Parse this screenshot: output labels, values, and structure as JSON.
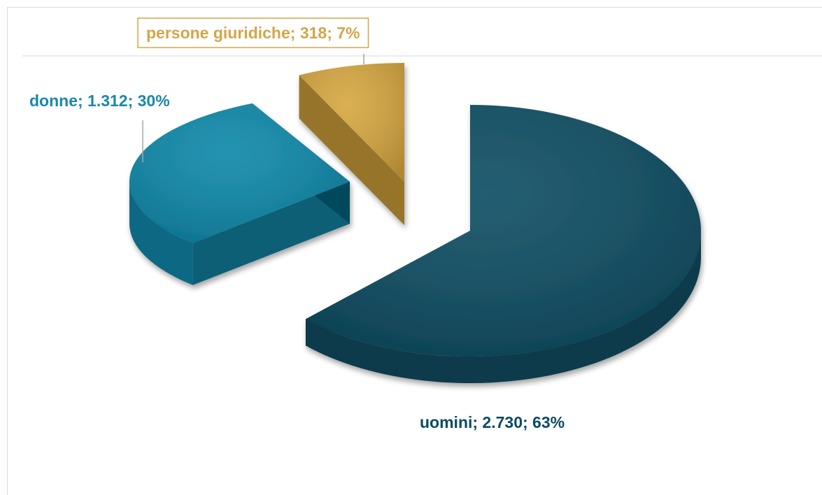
{
  "chart_data": {
    "type": "pie",
    "title": "",
    "three_d": true,
    "exploded": true,
    "legend": "none",
    "slices": [
      {
        "label": "uomini",
        "value": 2730,
        "value_text": "2.730",
        "percent_text": "63%",
        "color": "#0b4b61"
      },
      {
        "label": "donne",
        "value": 1312,
        "value_text": "1.312",
        "percent_text": "30%",
        "color": "#0b87a8"
      },
      {
        "label": "persone giuridiche",
        "value": 318,
        "value_text": "318",
        "percent_text": "7%",
        "color": "#d6a63f"
      }
    ],
    "label_colors": {
      "uomini": "#0b4b61",
      "donne": "#1a88aa",
      "persone giuridiche": "#d4a54a"
    },
    "label_border_color": "#d4a54a",
    "leader_line_color": "#a6a6a6"
  }
}
